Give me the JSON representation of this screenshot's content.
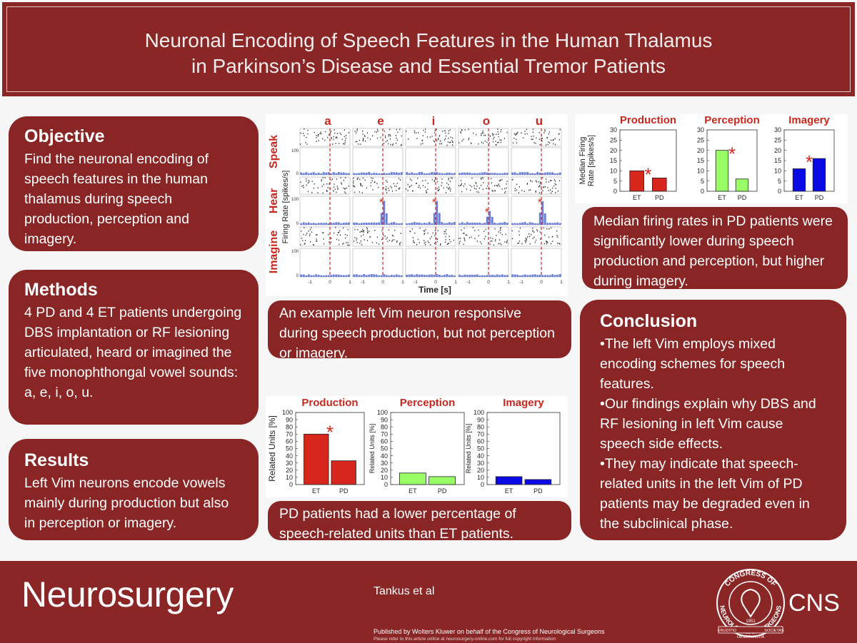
{
  "header": {
    "title": [
      "Neuronal Encoding of Speech Features in the Human Thalamus",
      "in Parkinson’s Disease and Essential Tremor Patients"
    ]
  },
  "objective": {
    "heading": "Objective",
    "text": "Find the neuronal encoding of speech features in the human thalamus during speech production, perception and imagery."
  },
  "methods": {
    "heading": "Methods",
    "text": "4 PD and 4 ET patients undergoing DBS implantation or RF lesioning articulated, heard or imagined the five monophthongal vowel sounds: a, e, i, o, u."
  },
  "results": {
    "heading": "Results",
    "text": "Left Vim neurons encode vowels mainly during production but also in perception or imagery."
  },
  "raster": {
    "vowels": [
      "a",
      "e",
      "i",
      "o",
      "u"
    ],
    "rows": [
      "Speak",
      "Hear",
      "Imagine"
    ],
    "ylabel": "Firing Rate [spikes/s]",
    "xlabel": "Time [s]",
    "yticks": [
      100,
      0
    ],
    "xticks": [
      -1,
      0,
      1
    ],
    "marker": "*"
  },
  "captions": [
    "An example left Vim neuron responsive during speech production, but not perception or imagery.",
    "PD patients had a lower percentage of speech-related units than ET patients.",
    "Median firing rates in PD patients were significantly lower during speech production and perception, but higher during imagery."
  ],
  "chart_data": [
    {
      "type": "bar",
      "title": "Production",
      "ylabel": [
        "Median Firing",
        "Rate [spikes/s]"
      ],
      "categories": [
        "ET",
        "PD"
      ],
      "values": [
        10,
        6.5
      ],
      "color": "#d7261c",
      "ylim": [
        0,
        30
      ],
      "yticks": [
        0,
        5,
        10,
        15,
        20,
        25,
        30
      ],
      "annotation": "*"
    },
    {
      "type": "bar",
      "title": "Perception",
      "categories": [
        "ET",
        "PD"
      ],
      "values": [
        20,
        6
      ],
      "color": "#99ff66",
      "ylim": [
        0,
        30
      ],
      "yticks": [
        0,
        5,
        10,
        15,
        20,
        25,
        30
      ],
      "annotation": "*"
    },
    {
      "type": "bar",
      "title": "Imagery",
      "categories": [
        "ET",
        "PD"
      ],
      "values": [
        11,
        16
      ],
      "color": "#0a0ae6",
      "ylim": [
        0,
        30
      ],
      "yticks": [
        0,
        5,
        10,
        15,
        20,
        25,
        30
      ],
      "annotation": "*"
    },
    {
      "type": "bar",
      "title": "Production",
      "ylabel": [
        "Related Units [%]"
      ],
      "categories": [
        "ET",
        "PD"
      ],
      "values": [
        70,
        33
      ],
      "color": "#d7261c",
      "ylim": [
        0,
        100
      ],
      "yticks": [
        0,
        10,
        20,
        30,
        40,
        50,
        60,
        70,
        80,
        90,
        100
      ],
      "annotation": "*"
    },
    {
      "type": "bar",
      "title": "Perception",
      "ylabel": [
        "Related Units [%]"
      ],
      "categories": [
        "ET",
        "PD"
      ],
      "values": [
        16,
        11
      ],
      "color": "#99ff66",
      "ylim": [
        0,
        100
      ],
      "yticks": [
        0,
        10,
        20,
        30,
        40,
        50,
        60,
        70,
        80,
        90,
        100
      ]
    },
    {
      "type": "bar",
      "title": "Imagery",
      "ylabel": [
        "Related Units [%]"
      ],
      "categories": [
        "ET",
        "PD"
      ],
      "values": [
        11,
        7
      ],
      "color": "#0a0ae6",
      "ylim": [
        0,
        100
      ],
      "yticks": [
        0,
        10,
        20,
        30,
        40,
        50,
        60,
        70,
        80,
        90,
        100
      ]
    }
  ],
  "conclusion": {
    "heading": "Conclusion",
    "bullets": [
      "•The left Vim employs mixed encoding schemes for speech features.",
      "•Our findings explain why DBS and RF lesioning in left Vim cause speech side effects.",
      "•They may indicate that speech-related units in the left Vim of PD patients may be degraded even in the subclinical phase."
    ]
  },
  "footer": {
    "journal": "Neurosurgery",
    "authors": "Tankus et al",
    "published": "Published  by Wolters Kluwer on behalf of the Congress of Neurological Surgeons",
    "notice": "Please refer to this article online  at neurosurgery-online.com  for full copyright information",
    "logo": {
      "ring_top": "CONGRESS OF",
      "ring_bottom": "NEUROLOGICAL SURGEONS",
      "year": "1951",
      "mottos": [
        "ERUDITIO",
        "OBSERVANTIA",
        "SOCIETAS"
      ],
      "acronym": "CNS"
    }
  }
}
